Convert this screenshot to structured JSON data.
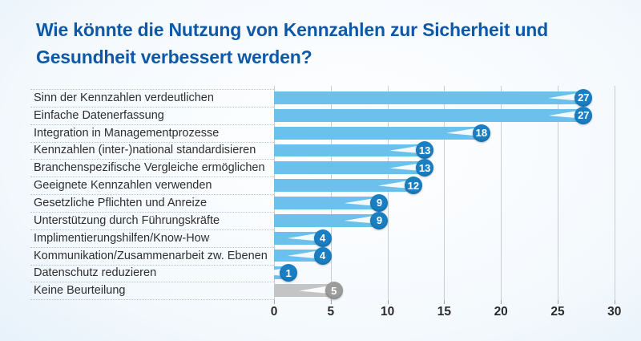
{
  "chart_data": {
    "type": "bar",
    "orientation": "horizontal",
    "title": "Wie könnte die Nutzung von Kennzahlen zur Sicherheit und Gesundheit verbessert werden?",
    "categories": [
      "Sinn der Kennzahlen verdeutlichen",
      "Einfache Datenerfassung",
      "Integration in Managementprozesse",
      "Kennzahlen (inter-)national standardisieren",
      "Branchenspezifische Vergleiche ermöglichen",
      "Geeignete Kennzahlen verwenden",
      "Gesetzliche Pflichten und Anreize",
      "Unterstützung durch Führungskräfte",
      "Implimentierungshilfen/Know-How",
      "Kommunikation/Zusammenarbeit zw. Ebenen",
      "Datenschutz reduzieren",
      "Keine Beurteilung"
    ],
    "values": [
      27,
      27,
      18,
      13,
      13,
      12,
      9,
      9,
      4,
      4,
      1,
      5
    ],
    "bar_variants": [
      "primary",
      "primary",
      "primary",
      "primary",
      "primary",
      "primary",
      "primary",
      "primary",
      "primary",
      "primary",
      "primary",
      "neutral"
    ],
    "xticks": [
      0,
      5,
      10,
      15,
      20,
      25,
      30
    ],
    "xlim": [
      0,
      30
    ],
    "grid": "vertical-gridlines",
    "legend": false,
    "colors": {
      "title_text": "#0e58a8",
      "bar_primary": "#6bc0ec",
      "badge_primary": "#1a7ec2",
      "bar_neutral": "#c4c4c4",
      "badge_neutral": "#9c9c9c"
    }
  }
}
